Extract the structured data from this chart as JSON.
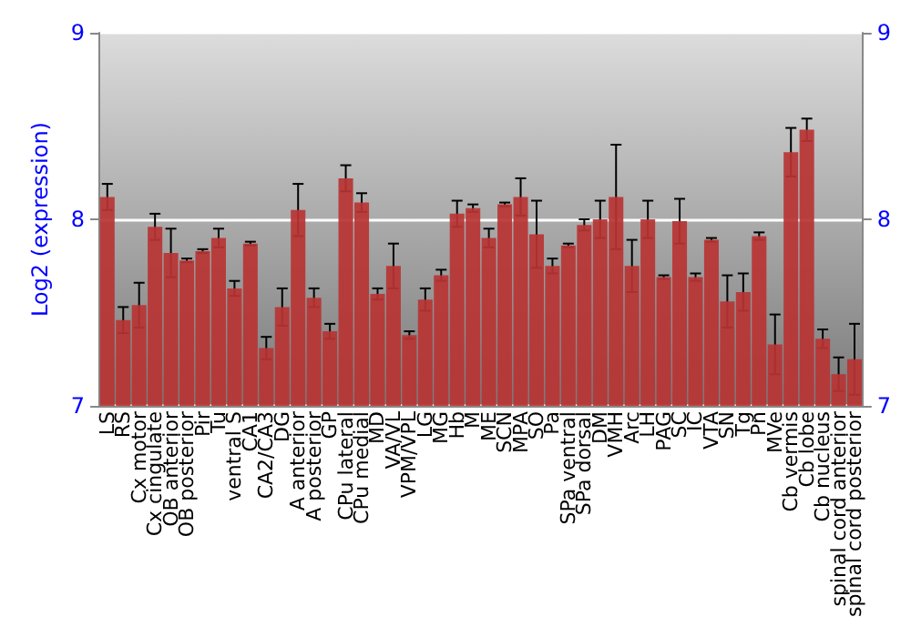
{
  "chart_data": {
    "type": "bar",
    "ylabel": "Log2 (expression)",
    "categories": [
      "LS",
      "RS",
      "Cx motor",
      "Cx cingulate",
      "OB anterior",
      "OB posterior",
      "Pir",
      "Tu",
      "ventral S",
      "CA1",
      "CA2/CA3",
      "DG",
      "A anterior",
      "A posterior",
      "GP",
      "CPu lateral",
      "CPu medial",
      "MD",
      "VA/VL",
      "VPM/VPL",
      "LG",
      "MG",
      "Hb",
      "M",
      "ME",
      "SCN",
      "MPA",
      "SO",
      "Pa",
      "SPa ventral",
      "SPa dorsal",
      "DM",
      "VMH",
      "Arc",
      "LH",
      "PAG",
      "SC",
      "IC",
      "VTA",
      "SN",
      "Tg",
      "Pn",
      "MVe",
      "Cb vermis",
      "Cb lobe",
      "Cb nucleus",
      "spinal cord anterior",
      "spinal cord posterior"
    ],
    "values": [
      8.12,
      7.46,
      7.54,
      7.96,
      7.82,
      7.78,
      7.83,
      7.9,
      7.63,
      7.87,
      7.31,
      7.53,
      8.05,
      7.58,
      7.4,
      8.22,
      8.09,
      7.6,
      7.75,
      7.38,
      7.57,
      7.7,
      8.03,
      8.06,
      7.9,
      8.08,
      8.12,
      7.92,
      7.75,
      7.86,
      7.97,
      8.0,
      8.12,
      7.75,
      8.0,
      7.69,
      7.99,
      7.69,
      7.89,
      7.56,
      7.61,
      7.91,
      7.33,
      8.36,
      8.48,
      7.36,
      7.17,
      7.25
    ],
    "errors": [
      0.07,
      0.07,
      0.12,
      0.07,
      0.13,
      0.01,
      0.01,
      0.05,
      0.04,
      0.01,
      0.06,
      0.1,
      0.14,
      0.05,
      0.04,
      0.07,
      0.05,
      0.03,
      0.12,
      0.02,
      0.06,
      0.03,
      0.07,
      0.02,
      0.05,
      0.01,
      0.1,
      0.18,
      0.04,
      0.01,
      0.03,
      0.1,
      0.28,
      0.14,
      0.1,
      0.01,
      0.12,
      0.02,
      0.01,
      0.14,
      0.1,
      0.02,
      0.16,
      0.13,
      0.06,
      0.05,
      0.09,
      0.19
    ],
    "color": "#b83434",
    "ylim": [
      7,
      9
    ],
    "yticks": [
      7,
      8,
      9
    ],
    "y2lim": [
      7,
      9
    ],
    "y2ticks": [
      7,
      8,
      9
    ],
    "grid": "y"
  }
}
